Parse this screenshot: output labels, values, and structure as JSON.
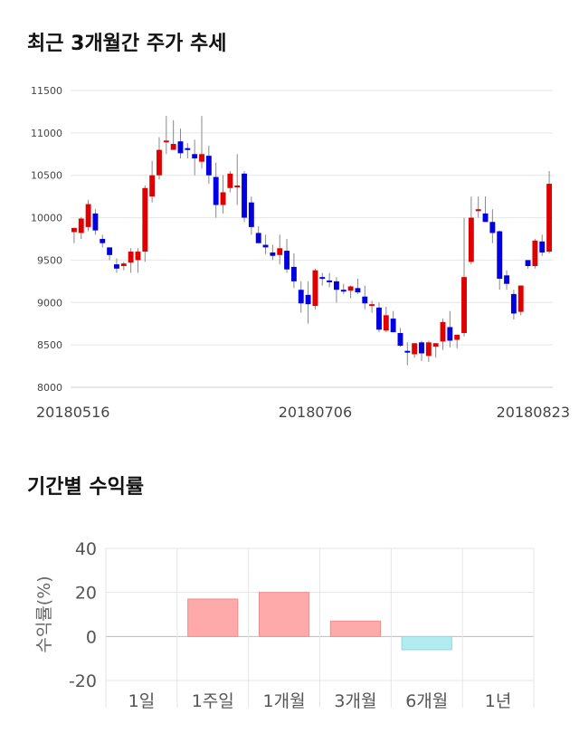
{
  "section1_title": "최근 3개월간 주가 추세",
  "section2_title": "기간별 수익률",
  "chart_data": [
    {
      "type": "candlestick",
      "title": "최근 3개월간 주가 추세",
      "ylim": [
        8000,
        11500
      ],
      "yticks": [
        8000,
        8500,
        9000,
        9500,
        10000,
        10500,
        11000,
        11500
      ],
      "xticks": [
        {
          "index": 0,
          "label": "20180516"
        },
        {
          "index": 34,
          "label": "20180706"
        },
        {
          "index": 68,
          "label": "20180823"
        }
      ],
      "colors": {
        "up": "#e00000",
        "down": "#0000e0",
        "wick": "#888888",
        "grid": "#e6e6e6"
      },
      "candles": [
        [
          9830,
          9880,
          9700,
          9880
        ],
        [
          9820,
          10010,
          9750,
          9990
        ],
        [
          9890,
          10210,
          9840,
          10160
        ],
        [
          10050,
          10100,
          9800,
          9850
        ],
        [
          9750,
          9800,
          9650,
          9700
        ],
        [
          9650,
          9650,
          9500,
          9560
        ],
        [
          9450,
          9520,
          9350,
          9400
        ],
        [
          9430,
          9480,
          9380,
          9460
        ],
        [
          9470,
          9640,
          9350,
          9600
        ],
        [
          9500,
          9640,
          9350,
          9600
        ],
        [
          9600,
          10380,
          9480,
          10350
        ],
        [
          10250,
          10670,
          10180,
          10500
        ],
        [
          10500,
          10950,
          10450,
          10800
        ],
        [
          10900,
          11200,
          10750,
          10910
        ],
        [
          10800,
          11150,
          10820,
          10870
        ],
        [
          10900,
          11050,
          10700,
          10760
        ],
        [
          10820,
          10880,
          10700,
          10800
        ],
        [
          10750,
          10920,
          10500,
          10700
        ],
        [
          10660,
          11200,
          10580,
          10750
        ],
        [
          10730,
          10850,
          10400,
          10500
        ],
        [
          10480,
          10650,
          10000,
          10150
        ],
        [
          10150,
          10500,
          10050,
          10300
        ],
        [
          10350,
          10550,
          10300,
          10520
        ],
        [
          10380,
          10750,
          10150,
          10380
        ],
        [
          10520,
          10550,
          9950,
          10000
        ],
        [
          10180,
          10250,
          9800,
          9890
        ],
        [
          9820,
          9900,
          9700,
          9700
        ],
        [
          9680,
          9800,
          9570,
          9650
        ],
        [
          9590,
          9680,
          9500,
          9550
        ],
        [
          9560,
          9800,
          9450,
          9640
        ],
        [
          9610,
          9750,
          9350,
          9390
        ],
        [
          9420,
          9580,
          9170,
          9250
        ],
        [
          9150,
          9250,
          8880,
          8990
        ],
        [
          9090,
          9250,
          8750,
          8980
        ],
        [
          8960,
          9400,
          8920,
          9380
        ],
        [
          9300,
          9350,
          9200,
          9280
        ],
        [
          9260,
          9350,
          9180,
          9250
        ],
        [
          9250,
          9300,
          9000,
          9150
        ],
        [
          9150,
          9220,
          9100,
          9140
        ],
        [
          9140,
          9200,
          9050,
          9190
        ],
        [
          9170,
          9280,
          9100,
          9120
        ],
        [
          9070,
          9200,
          8920,
          8990
        ],
        [
          8970,
          9020,
          8880,
          8980
        ],
        [
          8940,
          9000,
          8650,
          8680
        ],
        [
          8670,
          8950,
          8650,
          8850
        ],
        [
          8810,
          8900,
          8650,
          8650
        ],
        [
          8640,
          8700,
          8480,
          8490
        ],
        [
          8430,
          8530,
          8260,
          8420
        ],
        [
          8390,
          8520,
          8350,
          8520
        ],
        [
          8530,
          8550,
          8310,
          8400
        ],
        [
          8370,
          8550,
          8300,
          8530
        ],
        [
          8480,
          8520,
          8350,
          8520
        ],
        [
          8540,
          8810,
          8440,
          8770
        ],
        [
          8710,
          8900,
          8470,
          8550
        ],
        [
          8560,
          8620,
          8460,
          8620
        ],
        [
          8640,
          10000,
          8600,
          9300
        ],
        [
          9480,
          10250,
          9450,
          10000
        ],
        [
          10100,
          10250,
          10000,
          10100
        ],
        [
          10050,
          10250,
          9950,
          9950
        ],
        [
          9950,
          10100,
          9700,
          9820
        ],
        [
          9840,
          9850,
          9150,
          9280
        ],
        [
          9320,
          9380,
          9150,
          9220
        ],
        [
          9100,
          9150,
          8800,
          8870
        ],
        [
          8890,
          9200,
          8850,
          9200
        ],
        [
          9500,
          9500,
          9400,
          9430
        ],
        [
          9430,
          9750,
          9400,
          9730
        ],
        [
          9720,
          9800,
          9550,
          9590
        ],
        [
          9600,
          10550,
          9580,
          10400
        ]
      ]
    },
    {
      "type": "bar",
      "title": "기간별 수익률",
      "ylabel": "수익률(%)",
      "ylim": [
        -20,
        40
      ],
      "yticks": [
        -20,
        0,
        20,
        40
      ],
      "categories": [
        "1일",
        "1주일",
        "1개월",
        "3개월",
        "6개월",
        "1년"
      ],
      "values": [
        0,
        17,
        20,
        7,
        -6,
        0
      ],
      "colors": {
        "positive": "#ffaaaa",
        "positive_edge": "#f08c8c",
        "negative": "#b0ecf0",
        "negative_edge": "#8fd9e0"
      }
    }
  ]
}
